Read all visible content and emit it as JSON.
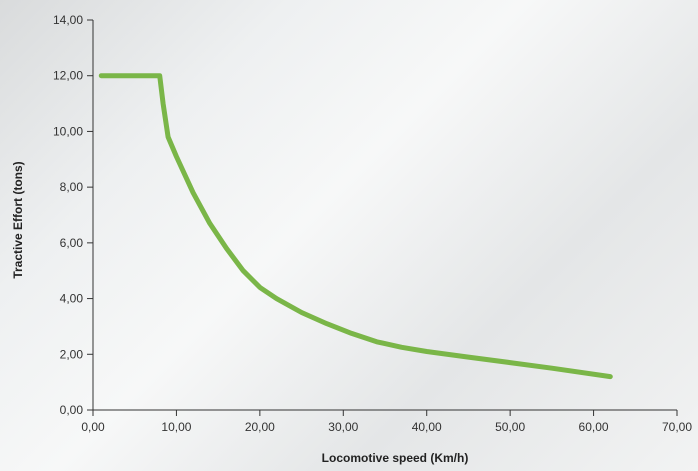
{
  "chart_data": {
    "type": "line",
    "title": "",
    "xlabel": "Locomotive speed (Km/h)",
    "ylabel": "Tractive Effort (tons)",
    "xlim": [
      0,
      70
    ],
    "ylim": [
      0,
      14
    ],
    "x_ticks": [
      0,
      10,
      20,
      30,
      40,
      50,
      60,
      70
    ],
    "x_tick_labels": [
      "0,00",
      "10,00",
      "20,00",
      "30,00",
      "40,00",
      "50,00",
      "60,00",
      "70,00"
    ],
    "y_ticks": [
      0,
      2,
      4,
      6,
      8,
      10,
      12,
      14
    ],
    "y_tick_labels": [
      "0,00",
      "2,00",
      "4,00",
      "6,00",
      "8,00",
      "10,00",
      "12,00",
      "14,00"
    ],
    "grid": false,
    "series": [
      {
        "color": "#7ab648",
        "x": [
          1,
          8,
          8.4,
          9,
          10,
          12,
          14,
          16,
          18,
          20,
          22,
          25,
          28,
          31,
          34,
          37,
          40,
          45,
          50,
          55,
          62
        ],
        "y": [
          12,
          12,
          11,
          9.8,
          9.1,
          7.8,
          6.7,
          5.8,
          5.0,
          4.4,
          4.0,
          3.5,
          3.1,
          2.75,
          2.45,
          2.25,
          2.1,
          1.9,
          1.7,
          1.5,
          1.2
        ]
      }
    ]
  }
}
